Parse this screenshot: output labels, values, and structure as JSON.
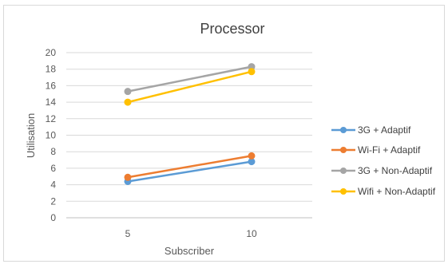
{
  "chart_data": {
    "type": "line",
    "title": "Processor",
    "xlabel": "Subscriber",
    "ylabel": "Utilisation",
    "categories": [
      "5",
      "10"
    ],
    "ylim": [
      0,
      20
    ],
    "yticks": [
      0,
      2,
      4,
      6,
      8,
      10,
      12,
      14,
      16,
      18,
      20
    ],
    "grid": true,
    "legend_position": "right",
    "series": [
      {
        "name": "3G + Adaptif",
        "values": [
          4.4,
          6.8
        ],
        "color": "#5b9bd5"
      },
      {
        "name": "Wi-Fi + Adaptif",
        "values": [
          4.9,
          7.5
        ],
        "color": "#ed7d31"
      },
      {
        "name": "3G + Non-Adaptif",
        "values": [
          15.3,
          18.3
        ],
        "color": "#a5a5a5"
      },
      {
        "name": "Wifi + Non-Adaptif",
        "values": [
          14.0,
          17.7
        ],
        "color": "#ffc000"
      }
    ]
  }
}
